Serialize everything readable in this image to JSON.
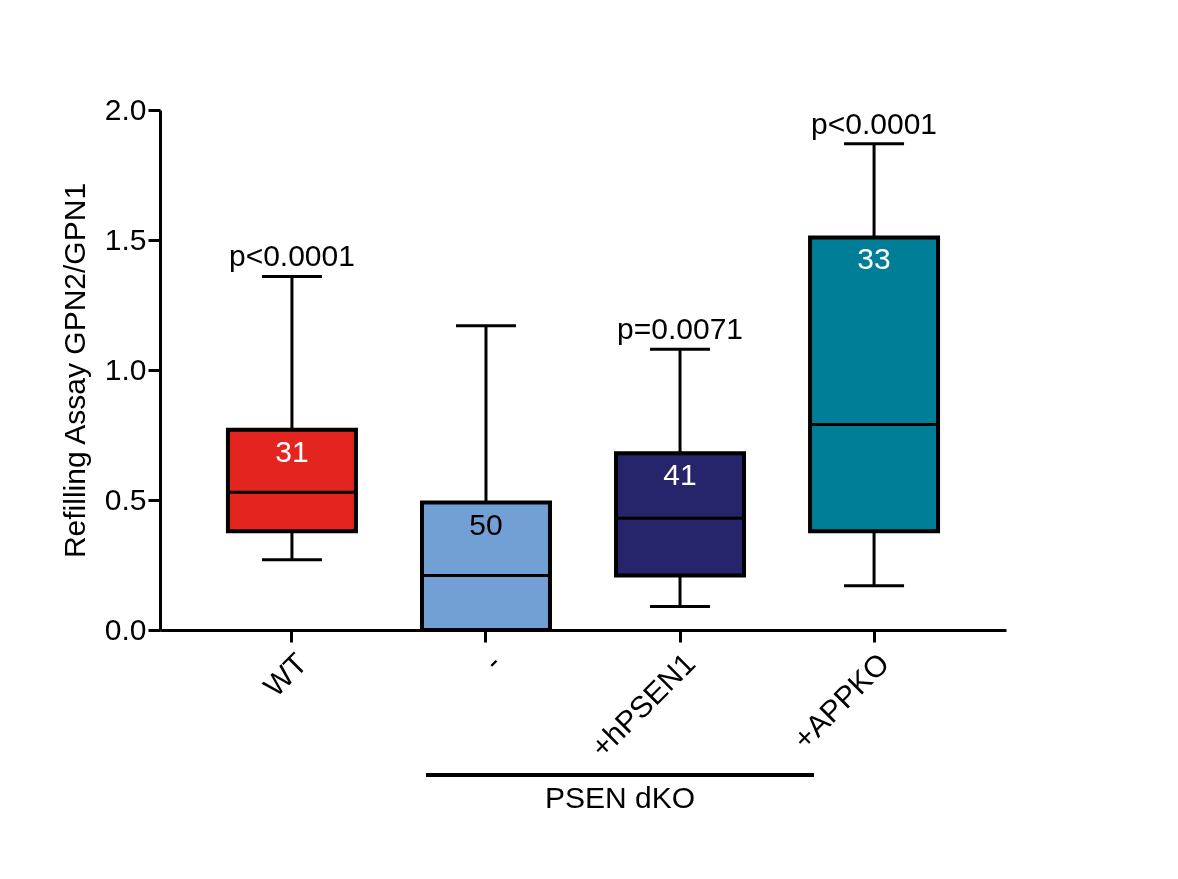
{
  "chart_data": {
    "type": "box",
    "categories": [
      "WT",
      "-",
      "+hPSEN1",
      "+APPKO"
    ],
    "colors": [
      "#e3241f",
      "#729fd4",
      "#26246a",
      "#007e98"
    ],
    "boxes": [
      {
        "low": 0.27,
        "q1": 0.38,
        "median": 0.53,
        "q3": 0.77,
        "high": 1.36
      },
      {
        "low": 0,
        "q1": 0,
        "median": 0.21,
        "q3": 0.49,
        "high": 1.17
      },
      {
        "low": 0.09,
        "q1": 0.21,
        "median": 0.43,
        "q3": 0.68,
        "high": 1.08
      },
      {
        "low": 0.17,
        "q1": 0.38,
        "median": 0.79,
        "q3": 1.51,
        "high": 1.87
      }
    ],
    "ylabel": "Refilling Assay GPN2/GPN1",
    "ylim": [
      0,
      2
    ],
    "yticks": [
      {
        "value": 0,
        "label": "0.0"
      },
      {
        "value": 0.5,
        "label": "0.5"
      },
      {
        "value": 1,
        "label": "1.0"
      },
      {
        "value": 1.5,
        "label": "1.5"
      },
      {
        "value": 2,
        "label": "2.0"
      }
    ],
    "annotations": [
      {
        "text": "p<0.0001",
        "x": "WT",
        "y": 1.36
      },
      {
        "text": "p=0.0071",
        "x": "+hPSEN1",
        "y": 1.08
      },
      {
        "text": "p<0.0001",
        "x": "+APPKO",
        "y": 1.87
      },
      {
        "text": "31",
        "x": "WT",
        "y": 0.77
      },
      {
        "text": "50",
        "x": "-",
        "y": 0.49
      },
      {
        "text": "41",
        "x": "+hPSEN1",
        "y": 0.68
      },
      {
        "text": "33",
        "x": "+APPKO",
        "y": 1.51
      },
      "PSEN dKO"
    ]
  }
}
